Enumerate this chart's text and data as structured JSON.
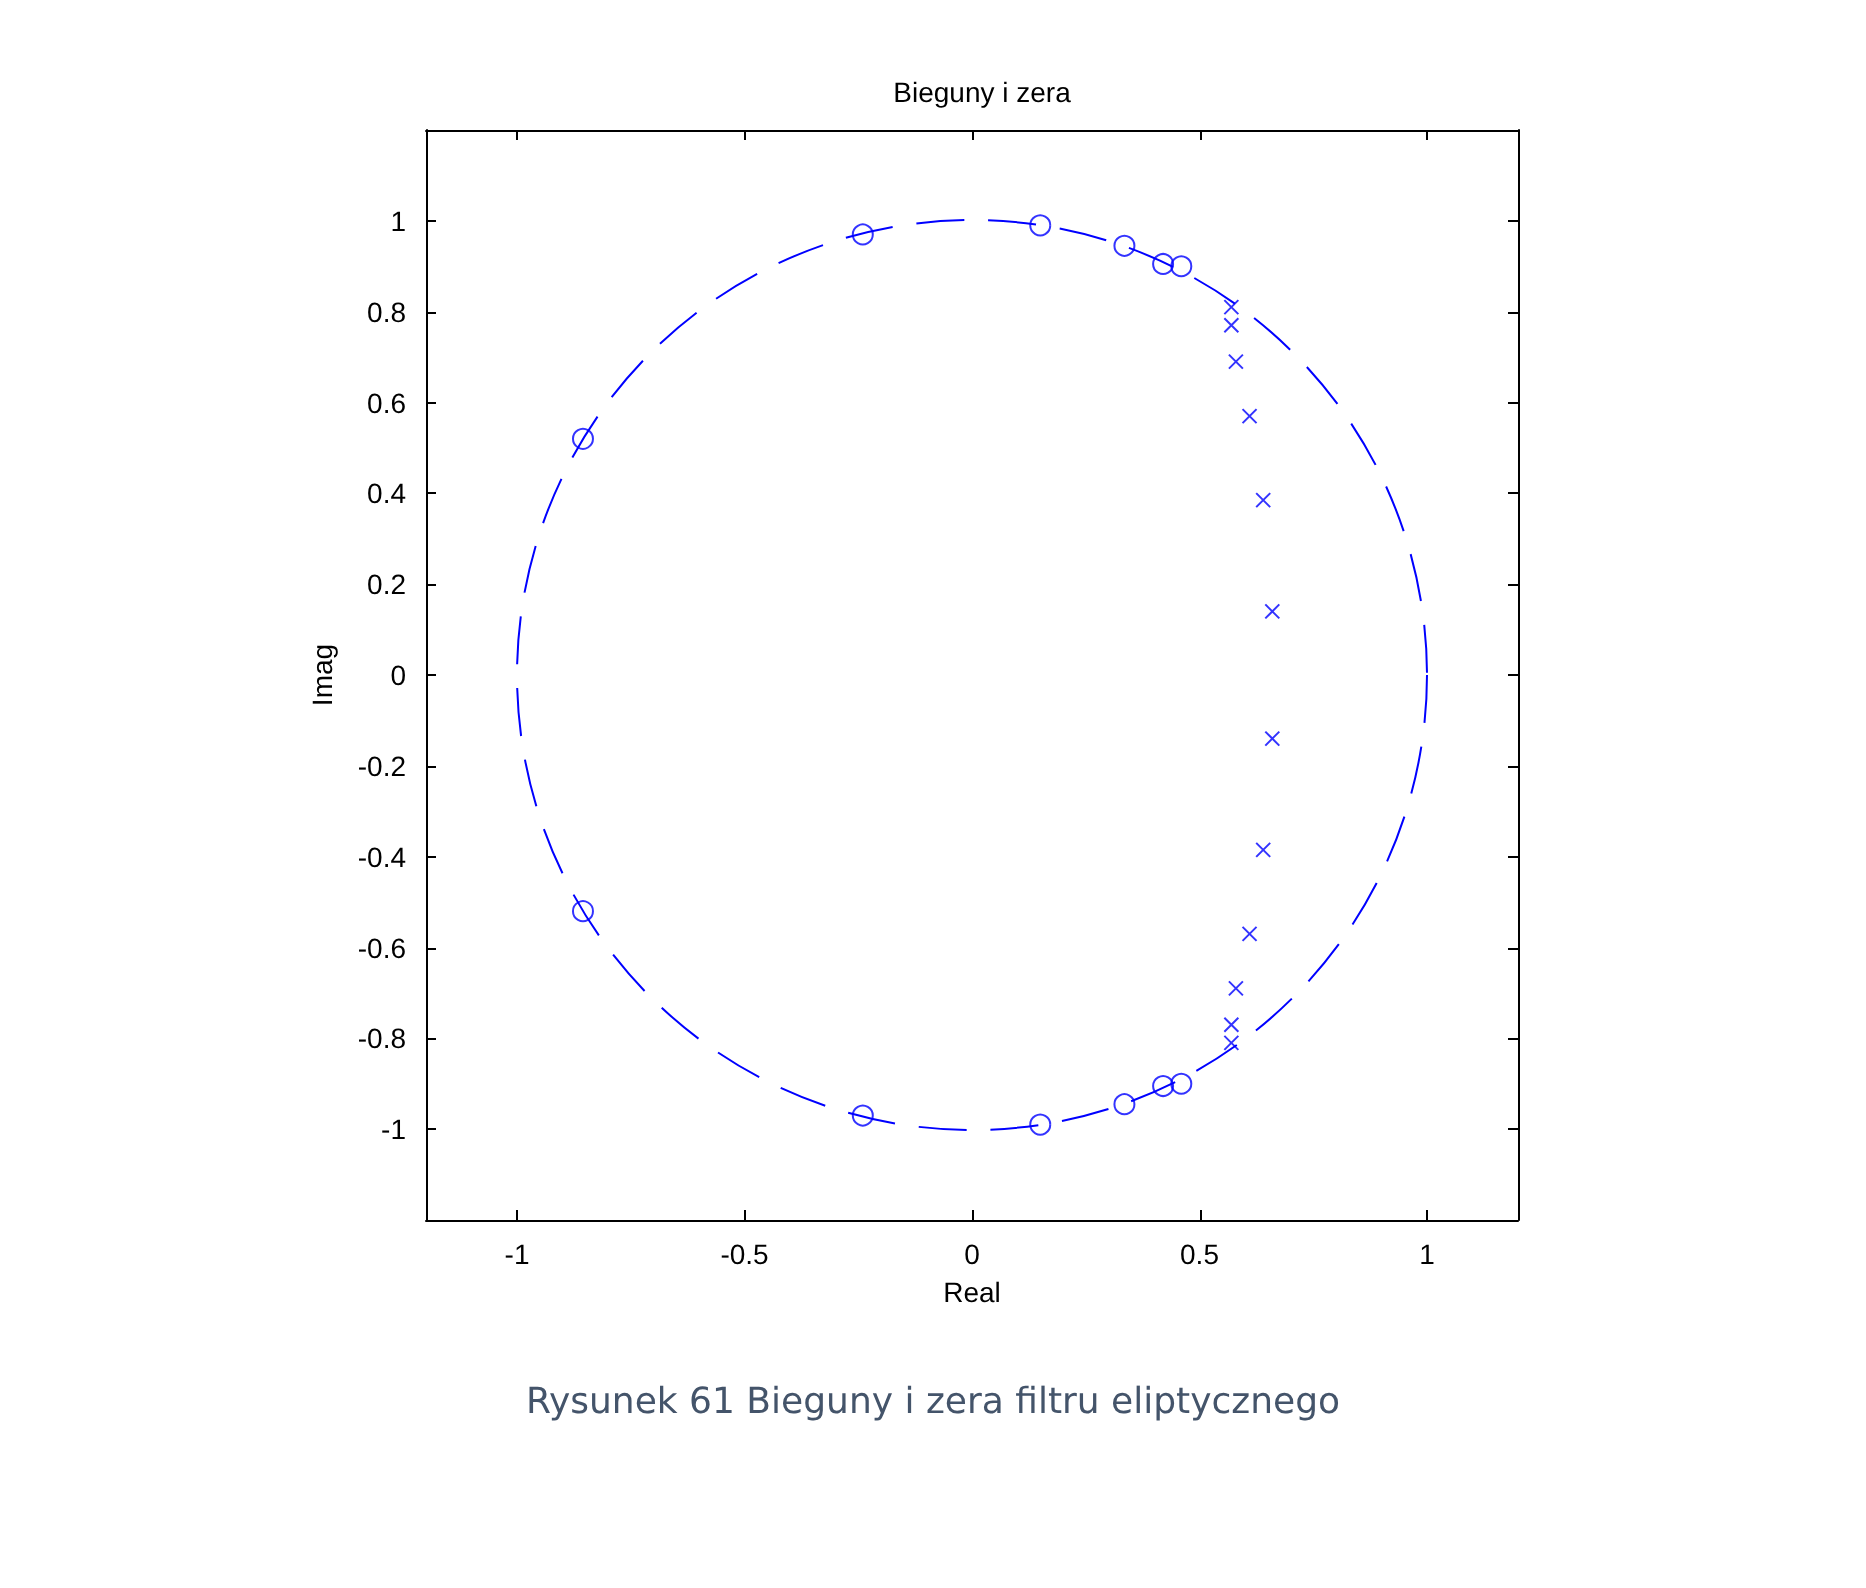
{
  "chart_data": {
    "type": "scatter",
    "title": "Bieguny i zera",
    "xlabel": "Real",
    "ylabel": "Imag",
    "xlim": [
      -1.2,
      1.2
    ],
    "ylim": [
      -1.2,
      1.2
    ],
    "xticks": [
      -1,
      -0.5,
      0,
      0.5,
      1
    ],
    "yticks": [
      -1,
      -0.8,
      -0.6,
      -0.4,
      -0.2,
      0,
      0.2,
      0.4,
      0.6,
      0.8,
      1
    ],
    "grid": false,
    "annotations": [
      "Rysunek 61 Bieguny i zera filtru eliptycznego"
    ],
    "series": [
      {
        "type": "scatter",
        "marker": "circle",
        "color": "#0000ff",
        "x": [
          -0.24,
          0.15,
          0.335,
          0.42,
          0.46,
          -0.855,
          -0.24,
          0.15,
          0.335,
          0.42,
          0.46,
          -0.855
        ],
        "values": [
          0.97,
          0.99,
          0.945,
          0.905,
          0.9,
          0.52,
          -0.97,
          -0.99,
          -0.945,
          -0.905,
          -0.9,
          -0.52
        ]
      },
      {
        "marker": "cross",
        "color": "#0000ff",
        "x": [
          0.57,
          0.57,
          0.58,
          0.61,
          0.64,
          0.66,
          0.66,
          0.64,
          0.61,
          0.58,
          0.57,
          0.57
        ],
        "values": [
          0.81,
          0.77,
          0.69,
          0.57,
          0.385,
          0.14,
          -0.14,
          -0.385,
          -0.57,
          -0.69,
          -0.77,
          -0.81
        ]
      }
    ]
  }
}
